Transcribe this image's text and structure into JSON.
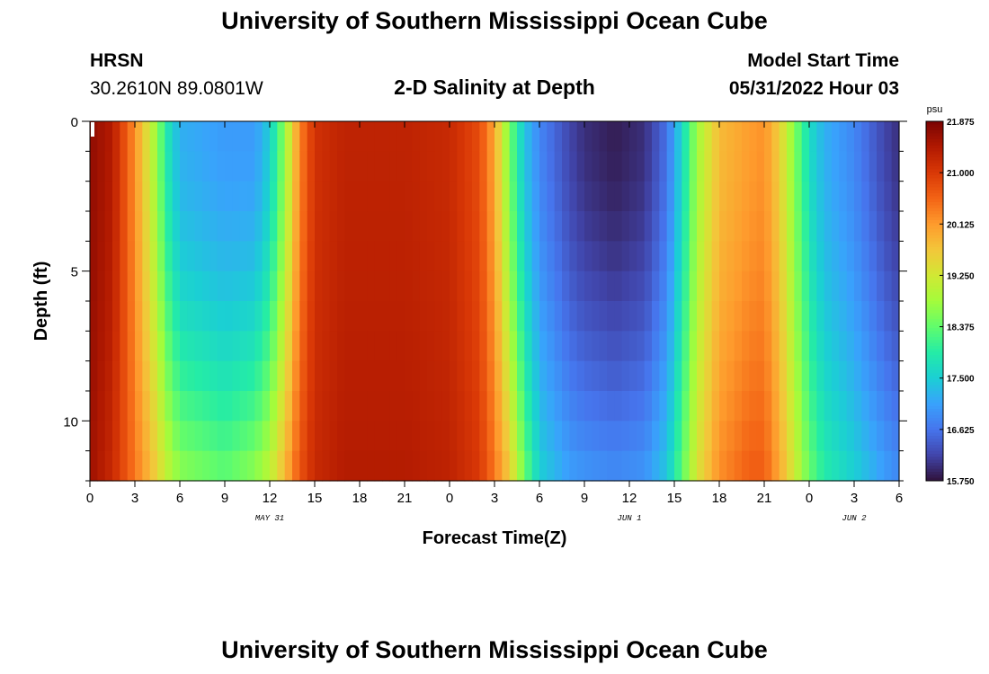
{
  "page": {
    "title_top": "University of Southern Mississippi Ocean Cube",
    "title_bottom": "University of Southern Mississippi Ocean Cube",
    "station": "HRSN",
    "coordinates": "30.2610N  89.0801W",
    "plot_title": "2-D Salinity at Depth",
    "model_start_label": "Model Start Time",
    "model_start_value": "05/31/2022 Hour 03"
  },
  "chart_data": {
    "type": "heatmap",
    "title": "2-D Salinity at Depth",
    "xlabel": "Forecast Time(Z)",
    "ylabel": "Depth (ft)",
    "x_ticks": [
      "0",
      "3",
      "6",
      "9",
      "12",
      "15",
      "18",
      "21",
      "0",
      "3",
      "6",
      "9",
      "12",
      "15",
      "18",
      "21",
      "0",
      "3",
      "6"
    ],
    "x_range_hours": [
      0,
      54
    ],
    "date_labels": [
      {
        "text": "MAY 31",
        "hour": 12
      },
      {
        "text": "JUN 1",
        "hour": 36
      },
      {
        "text": "JUN 2",
        "hour": 51
      }
    ],
    "y_ticks": [
      0,
      5,
      10
    ],
    "y_range_ft": [
      0,
      12
    ],
    "y_inverted": true,
    "colorbar": {
      "unit": "psu",
      "labels": [
        "21.875",
        "21.000",
        "20.125",
        "19.250",
        "18.375",
        "17.500",
        "16.625",
        "15.750"
      ],
      "min": 15.75,
      "max": 21.875,
      "colors": [
        "#30123b",
        "#4145ab",
        "#4675ed",
        "#39a2fc",
        "#1bcfd4",
        "#24eca6",
        "#61fc6c",
        "#a4fc3b",
        "#d1e834",
        "#f3c63a",
        "#fe9b2d",
        "#f36315",
        "#d93806",
        "#b11901",
        "#7a0403"
      ]
    },
    "depth_levels_ft": [
      0.5,
      1.5,
      2.5,
      3.5,
      4.5,
      5.5,
      6.5,
      7.5,
      8.5,
      9.5,
      10.5,
      11.5
    ],
    "series_hour_step": 0.5,
    "surface_profile": [
      [
        0,
        21.7
      ],
      [
        1.5,
        21.4
      ],
      [
        3,
        20.2
      ],
      [
        4.2,
        19.0
      ],
      [
        5.2,
        17.8
      ],
      [
        6,
        17.2
      ],
      [
        9,
        17.0
      ],
      [
        11,
        17.0
      ],
      [
        12,
        17.5
      ],
      [
        13,
        18.7
      ],
      [
        14,
        20.3
      ],
      [
        15,
        21.1
      ],
      [
        17,
        21.3
      ],
      [
        21,
        21.3
      ],
      [
        24,
        21.2
      ],
      [
        26,
        20.8
      ],
      [
        27,
        20.0
      ],
      [
        28,
        18.5
      ],
      [
        29,
        17.4
      ],
      [
        30,
        16.8
      ],
      [
        32,
        16.2
      ],
      [
        33,
        16.0
      ],
      [
        35,
        15.85
      ],
      [
        37,
        16.0
      ],
      [
        38.5,
        16.6
      ],
      [
        39.5,
        17.6
      ],
      [
        40.5,
        18.8
      ],
      [
        42,
        19.8
      ],
      [
        44,
        20.1
      ],
      [
        45,
        20.2
      ],
      [
        46,
        19.6
      ],
      [
        47,
        18.6
      ],
      [
        48,
        17.7
      ],
      [
        49,
        17.2
      ],
      [
        51,
        16.8
      ],
      [
        53,
        16.2
      ],
      [
        54,
        16.0
      ]
    ],
    "bottom_profile": [
      [
        0,
        21.6
      ],
      [
        1.5,
        21.2
      ],
      [
        3,
        20.4
      ],
      [
        4.2,
        19.7
      ],
      [
        5.2,
        19.0
      ],
      [
        6,
        18.6
      ],
      [
        9,
        18.3
      ],
      [
        11,
        18.6
      ],
      [
        12,
        19.0
      ],
      [
        13,
        19.8
      ],
      [
        14,
        20.7
      ],
      [
        15,
        21.2
      ],
      [
        17,
        21.4
      ],
      [
        21,
        21.4
      ],
      [
        24,
        21.3
      ],
      [
        26,
        21.0
      ],
      [
        27,
        20.4
      ],
      [
        28,
        19.6
      ],
      [
        29,
        18.4
      ],
      [
        30,
        17.5
      ],
      [
        32,
        17.0
      ],
      [
        33,
        16.9
      ],
      [
        35,
        16.8
      ],
      [
        37,
        16.9
      ],
      [
        38.5,
        17.4
      ],
      [
        39.5,
        18.3
      ],
      [
        40.5,
        19.3
      ],
      [
        42,
        20.2
      ],
      [
        44,
        20.6
      ],
      [
        45,
        20.6
      ],
      [
        46,
        20.0
      ],
      [
        47,
        19.2
      ],
      [
        48,
        18.4
      ],
      [
        49,
        17.9
      ],
      [
        51,
        17.5
      ],
      [
        53,
        17.0
      ],
      [
        54,
        16.8
      ]
    ]
  }
}
